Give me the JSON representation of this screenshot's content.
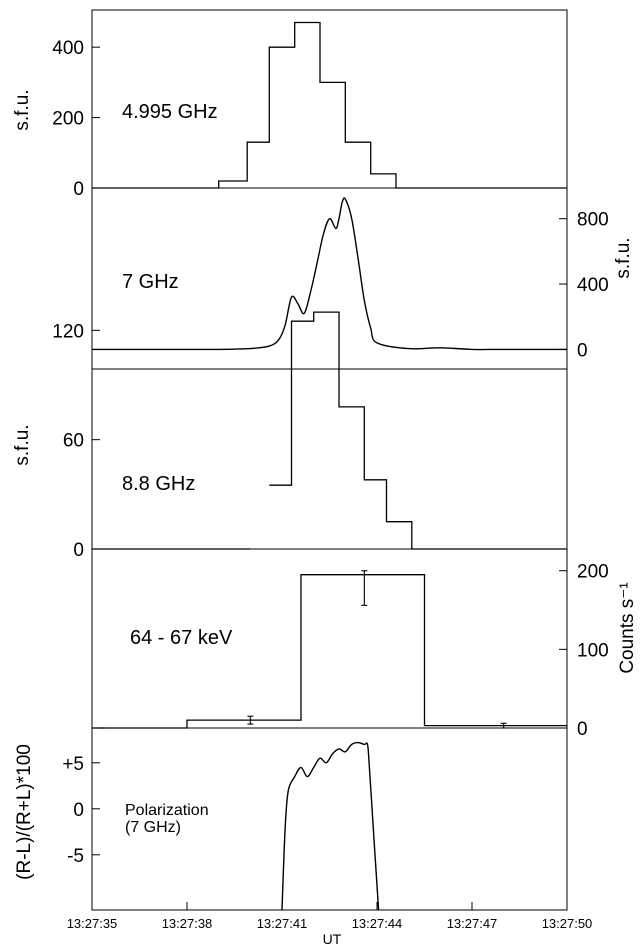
{
  "chart_data": {
    "type": "line",
    "xlabel": "UT",
    "x_ticks": [
      "13:27:35",
      "13:27:38",
      "13:27:41",
      "13:27:44",
      "13:27:47",
      "13:27:50"
    ],
    "xlim_seconds_after_13_27_00": [
      35,
      50
    ],
    "panels": [
      {
        "id": "p1",
        "label": "4.995 GHz",
        "ylabel": "s.f.u.",
        "ylabel_side": "left",
        "ylim": [
          0,
          480
        ],
        "yticks": [
          {
            "value": 0,
            "label": "0"
          },
          {
            "value": 200,
            "label": "200"
          },
          {
            "value": 400,
            "label": "400"
          }
        ],
        "style": "step",
        "series": [
          {
            "edges": [
              35.0,
              39.0,
              39.9,
              40.6,
              41.4,
              42.2,
              43.0,
              43.8,
              44.6,
              45.5,
              46.2,
              50.0
            ],
            "values": [
              0,
              20,
              130,
              400,
              470,
              300,
              130,
              40,
              0,
              0,
              0
            ]
          }
        ]
      },
      {
        "id": "p2",
        "label": "7 GHz",
        "ylabel": "s.f.u.",
        "ylabel_side": "right",
        "ylim": [
          -120,
          1000
        ],
        "yticks": [
          {
            "value": 0,
            "label": "0"
          },
          {
            "value": 400,
            "label": "400"
          },
          {
            "value": 800,
            "label": "800"
          }
        ],
        "style": "line",
        "series": [
          {
            "x": [
              35.0,
              37.0,
              39.0,
              40.0,
              40.6,
              40.9,
              41.1,
              41.3,
              41.5,
              41.7,
              41.9,
              42.1,
              42.3,
              42.5,
              42.7,
              42.8,
              42.9,
              43.0,
              43.2,
              43.4,
              43.6,
              43.8,
              44.0,
              45.0,
              46.0,
              47.0,
              48.0,
              50.0
            ],
            "y": [
              0,
              0,
              0,
              5,
              20,
              60,
              150,
              320,
              280,
              220,
              350,
              520,
              700,
              800,
              740,
              800,
              900,
              920,
              800,
              560,
              300,
              130,
              40,
              5,
              10,
              0,
              0,
              0
            ]
          }
        ]
      },
      {
        "id": "p3",
        "label": "8.8 GHz",
        "ylabel": "s.f.u.",
        "ylabel_side": "left",
        "ylim": [
          0,
          135
        ],
        "yticks": [
          {
            "value": 0,
            "label": "0"
          },
          {
            "value": 60,
            "label": "60"
          },
          {
            "value": 120,
            "label": "120"
          }
        ],
        "style": "step",
        "series": [
          {
            "edges": [
              35.0,
              40.0
            ],
            "values": [
              0
            ]
          },
          {
            "edges": [
              40.6,
              41.3,
              42.0,
              42.8,
              43.6,
              44.3,
              45.1,
              45.8,
              50.0
            ],
            "values": [
              35,
              125,
              130,
              78,
              38,
              15,
              0,
              0
            ]
          }
        ]
      },
      {
        "id": "p4",
        "label": "64 -  67 keV",
        "ylabel": "Counts s⁻¹",
        "ylabel_side": "right",
        "ylim": [
          0,
          220
        ],
        "yticks": [
          {
            "value": 0,
            "label": "0"
          },
          {
            "value": 100,
            "label": "100"
          },
          {
            "value": 200,
            "label": "200"
          }
        ],
        "style": "step",
        "series": [
          {
            "edges": [
              35.0,
              38.0,
              41.6,
              45.5,
              50.0
            ],
            "values": [
              0,
              10,
              195,
              3
            ]
          }
        ],
        "error_bars": [
          {
            "x": 35.3,
            "y": 0,
            "err": 0
          },
          {
            "x": 40.0,
            "y": 10,
            "err": 5
          },
          {
            "x": 43.6,
            "y": 178,
            "err": 22
          },
          {
            "x": 48.0,
            "y": 3,
            "err": 3
          }
        ]
      },
      {
        "id": "p5",
        "label": "Polarization",
        "label2": "(7 GHz)",
        "ylabel": "(R-L)/(R+L)*100",
        "ylabel_side": "left",
        "ylim": [
          -11,
          9
        ],
        "yticks": [
          {
            "value": -5,
            "label": "-5"
          },
          {
            "value": 0,
            "label": "0"
          },
          {
            "value": 5,
            "label": "+5"
          }
        ],
        "style": "line",
        "series": [
          {
            "x": [
              41.0,
              41.1,
              41.2,
              41.4,
              41.6,
              41.8,
              42.0,
              42.2,
              42.4,
              42.6,
              42.8,
              43.0,
              43.2,
              43.4,
              43.6,
              43.7,
              43.75,
              43.9,
              44.05
            ],
            "y": [
              -11,
              -2,
              2.0,
              3.5,
              4.5,
              3.5,
              4.5,
              5.5,
              5.0,
              6.0,
              6.5,
              6.2,
              7.0,
              7.2,
              7.0,
              7.0,
              5.0,
              -3,
              -11
            ]
          }
        ]
      }
    ]
  }
}
